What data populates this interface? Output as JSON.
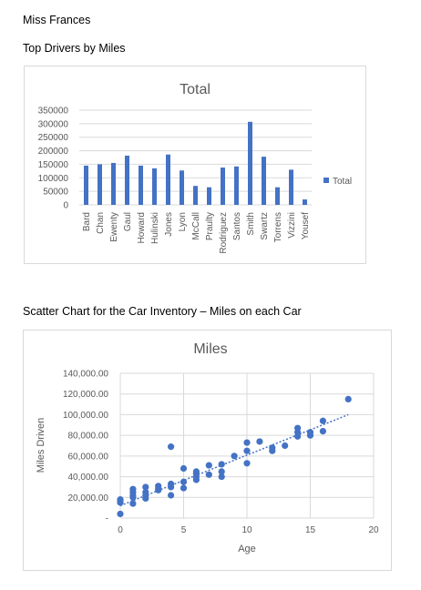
{
  "document": {
    "author": "Miss Frances",
    "section1_title": "Top Drivers by Miles",
    "section2_title": "Scatter Chart for the Car Inventory – Miles on each Car"
  },
  "chart_data": [
    {
      "type": "bar",
      "title": "Total",
      "categories": [
        "Bard",
        "Chan",
        "Ewenty",
        "Gaul",
        "Howard",
        "Hulinski",
        "Jones",
        "Lyon",
        "McCall",
        "Praulty",
        "Rodriguez",
        "Santos",
        "Smith",
        "Swartz",
        "Torrens",
        "Vizzini",
        "Yousef"
      ],
      "series": [
        {
          "name": "Total",
          "values": [
            145000,
            150000,
            155000,
            182000,
            145000,
            135000,
            186000,
            127000,
            70000,
            65000,
            138000,
            142000,
            307000,
            178000,
            65000,
            130000,
            20000
          ]
        }
      ],
      "yticks": [
        "0",
        "50000",
        "100000",
        "150000",
        "200000",
        "250000",
        "300000",
        "350000"
      ],
      "ylim": [
        0,
        350000
      ],
      "grid": true,
      "legend": "right",
      "color": "#4472c4"
    },
    {
      "type": "scatter",
      "title": "Miles",
      "xlabel": "Age",
      "ylabel": "Miles Driven",
      "xlim": [
        0,
        20
      ],
      "ylim": [
        0,
        140000
      ],
      "xticks": [
        "0",
        "5",
        "10",
        "15",
        "20"
      ],
      "yticks": [
        "-",
        "20,000.00",
        "40,000.00",
        "60,000.00",
        "80,000.00",
        "100,000.00",
        "120,000.00",
        "140,000.00"
      ],
      "grid": true,
      "color": "#4472c4",
      "trendline": {
        "x0": 0,
        "y0": 12000,
        "x1": 18,
        "y1": 100000
      },
      "points": [
        [
          0,
          4000
        ],
        [
          0,
          15000
        ],
        [
          0,
          17000
        ],
        [
          0,
          18000
        ],
        [
          1,
          14000
        ],
        [
          1,
          20000
        ],
        [
          1,
          22000
        ],
        [
          1,
          25000
        ],
        [
          1,
          28000
        ],
        [
          2,
          19000
        ],
        [
          2,
          22000
        ],
        [
          2,
          25000
        ],
        [
          2,
          30000
        ],
        [
          3,
          27000
        ],
        [
          3,
          29000
        ],
        [
          3,
          31000
        ],
        [
          4,
          22000
        ],
        [
          4,
          30000
        ],
        [
          4,
          33000
        ],
        [
          4,
          69000
        ],
        [
          5,
          29000
        ],
        [
          5,
          35000
        ],
        [
          5,
          48000
        ],
        [
          6,
          37000
        ],
        [
          6,
          40000
        ],
        [
          6,
          43000
        ],
        [
          6,
          45000
        ],
        [
          7,
          42000
        ],
        [
          7,
          51000
        ],
        [
          8,
          40000
        ],
        [
          8,
          45000
        ],
        [
          8,
          52000
        ],
        [
          9,
          60000
        ],
        [
          10,
          53000
        ],
        [
          10,
          65000
        ],
        [
          10,
          73000
        ],
        [
          11,
          74000
        ],
        [
          12,
          65000
        ],
        [
          12,
          68000
        ],
        [
          13,
          70000
        ],
        [
          14,
          79000
        ],
        [
          14,
          83000
        ],
        [
          14,
          87000
        ],
        [
          15,
          80000
        ],
        [
          15,
          83000
        ],
        [
          16,
          84000
        ],
        [
          16,
          94000
        ],
        [
          18,
          115000
        ]
      ]
    }
  ]
}
